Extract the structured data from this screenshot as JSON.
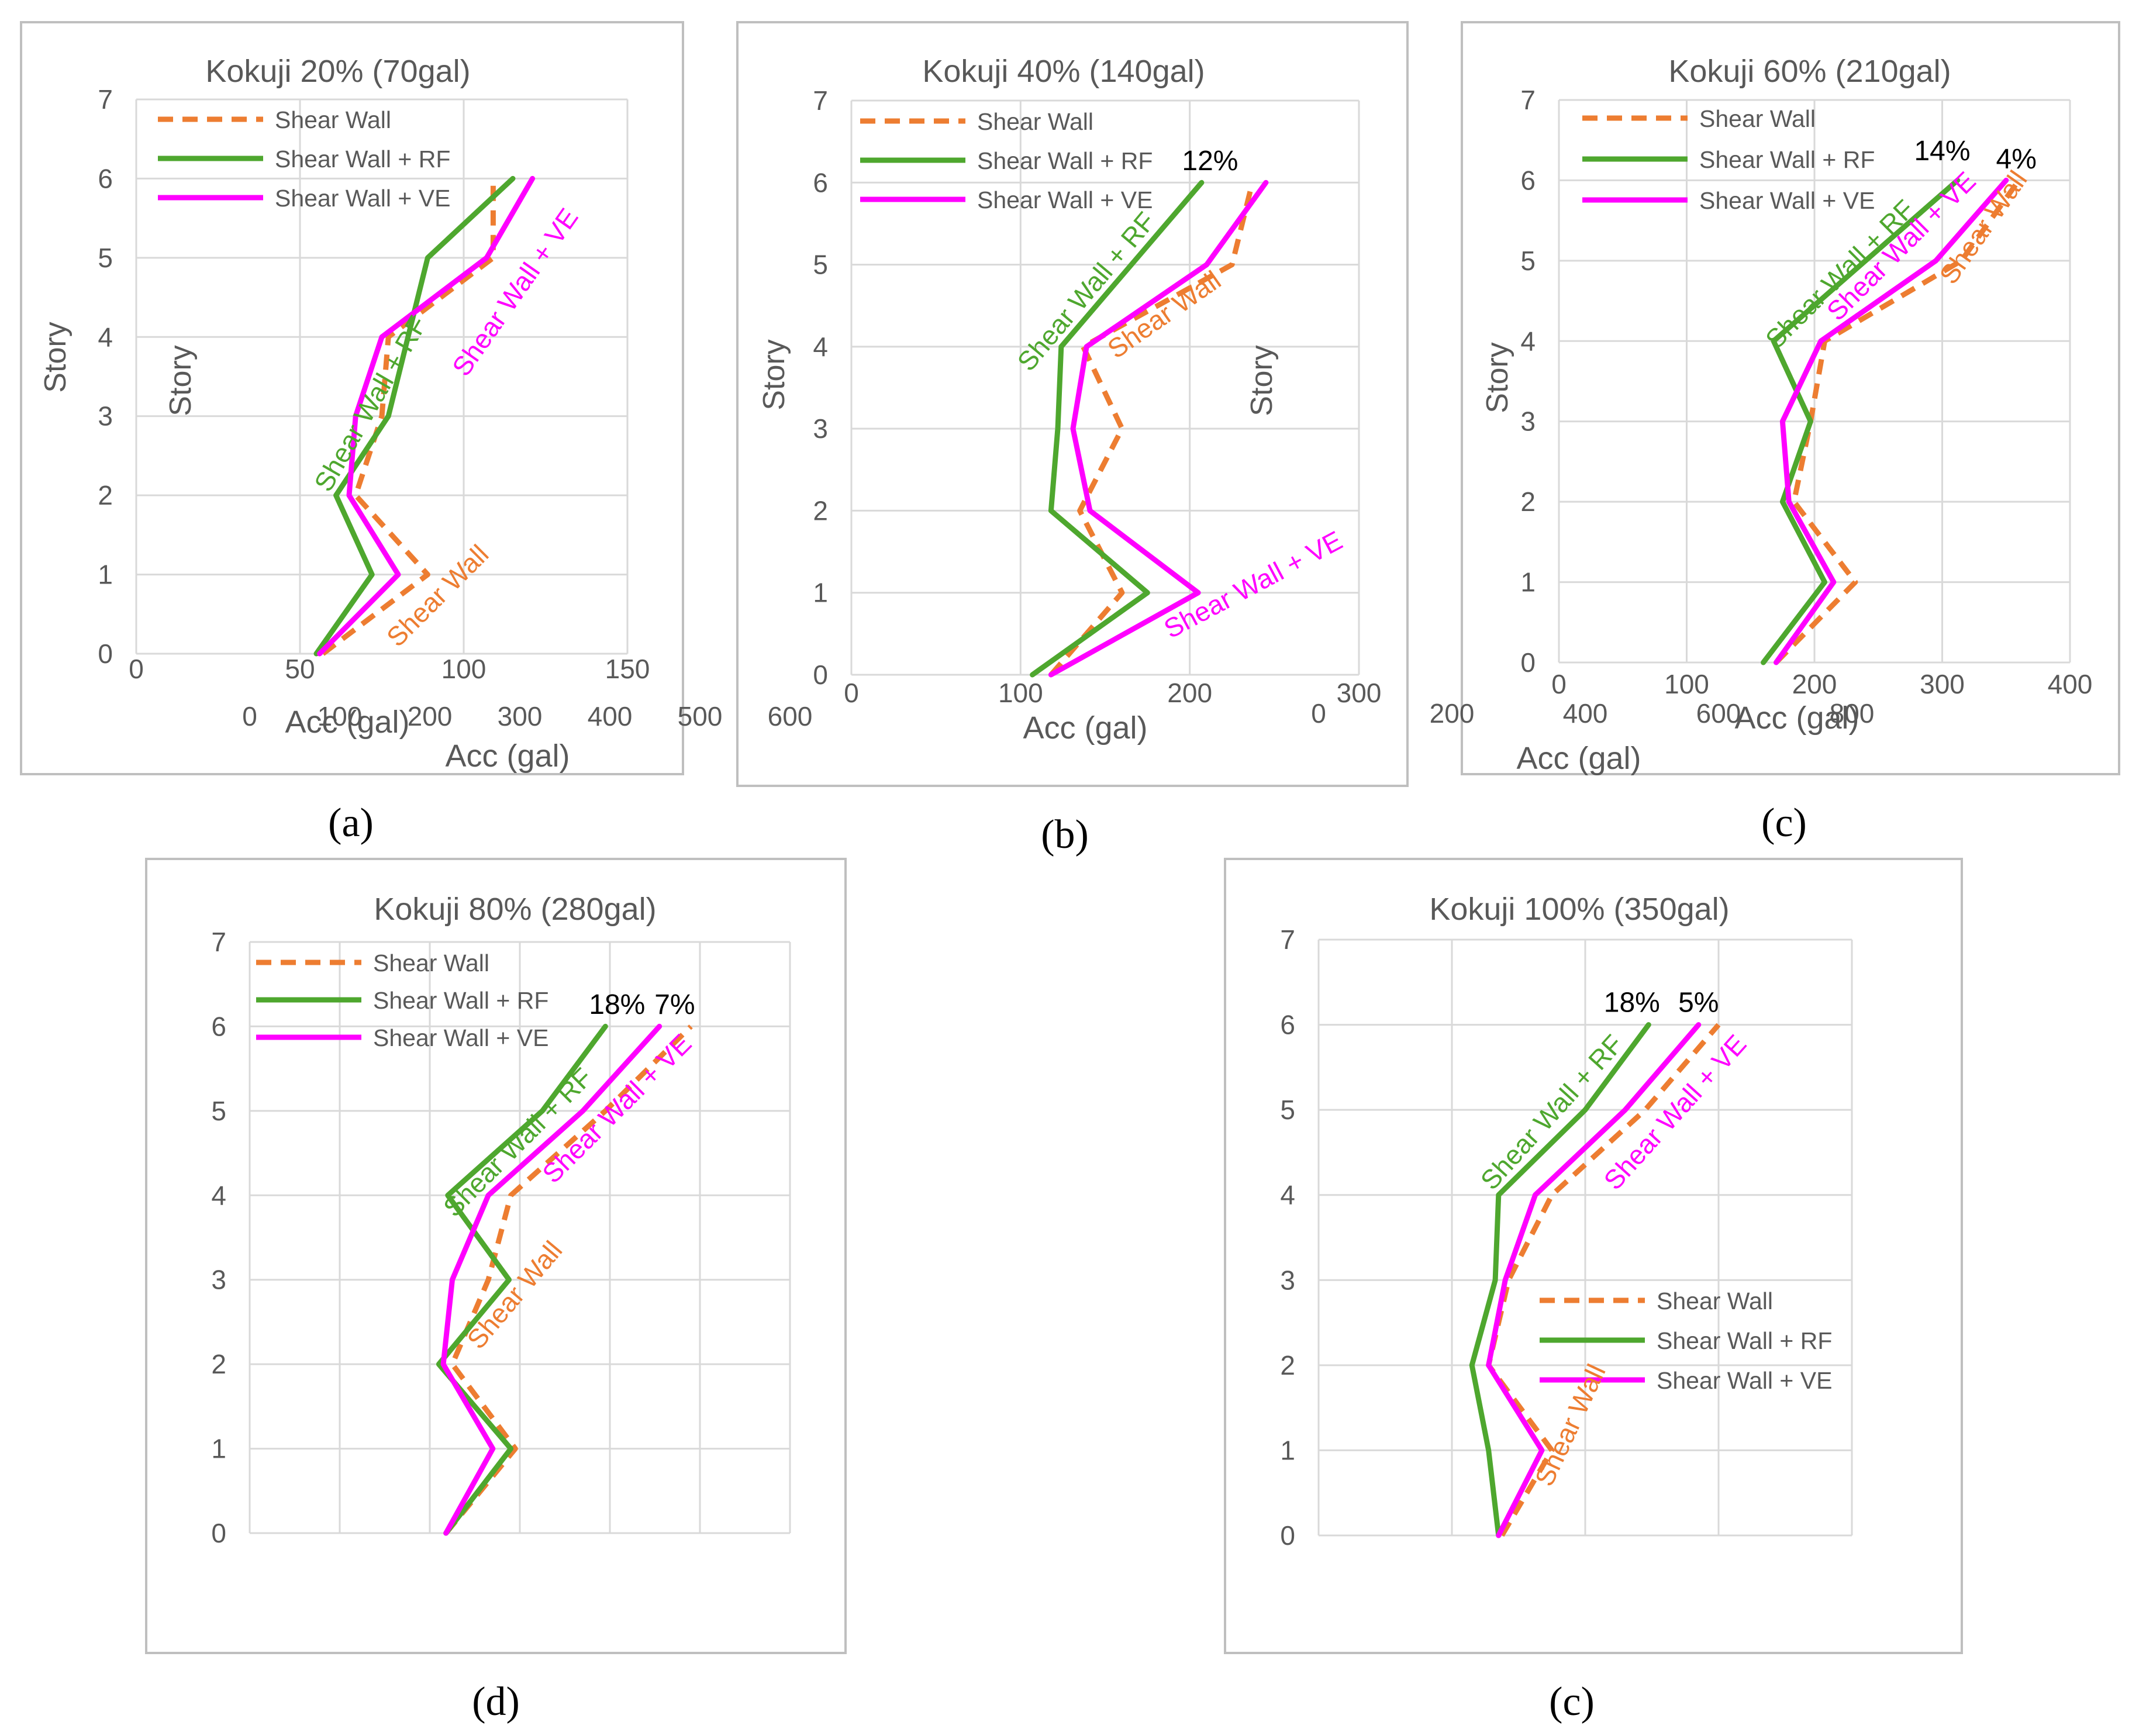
{
  "colors": {
    "shear_wall": "#ED7D31",
    "shear_wall_rf": "#4EA72E",
    "shear_wall_ve": "#FF00FF",
    "gridline": "#D9D9D9",
    "axis_text": "#595959",
    "title_text": "#595959",
    "frame": "#BFBFBF"
  },
  "chart_data": [
    {
      "id": "a",
      "type": "line",
      "caption": "(a)",
      "title": "Kokuji 20% (70gal)",
      "xlabel": "Acc (gal)",
      "ylabel": "Story",
      "xlim": [
        0,
        150
      ],
      "xticks": [
        "0",
        "50",
        "100",
        "150"
      ],
      "ylim": [
        0,
        7
      ],
      "yticks": [
        "0",
        "1",
        "2",
        "3",
        "4",
        "5",
        "6",
        "7"
      ],
      "grid": true,
      "legend": {
        "position": "top-left",
        "entries": [
          "Shear Wall",
          "Shear Wall + RF",
          "Shear Wall + VE"
        ]
      },
      "series": [
        {
          "name": "Shear Wall",
          "style": "dashed",
          "points": [
            [
              57,
              0
            ],
            [
              89,
              1
            ],
            [
              67,
              2
            ],
            [
              75,
              3
            ],
            [
              77,
              4
            ],
            [
              109,
              5
            ],
            [
              109,
              6
            ]
          ]
        },
        {
          "name": "Shear Wall + RF",
          "style": "solid",
          "points": [
            [
              55,
              0
            ],
            [
              72,
              1
            ],
            [
              61,
              2
            ],
            [
              77,
              3
            ],
            [
              89,
              5
            ],
            [
              115,
              6
            ]
          ]
        },
        {
          "name": "Shear Wall + VE",
          "style": "solid",
          "points": [
            [
              56,
              0
            ],
            [
              80,
              1
            ],
            [
              65,
              2
            ],
            [
              67,
              3
            ],
            [
              75,
              4
            ],
            [
              107,
              5
            ],
            [
              121,
              6
            ]
          ]
        }
      ],
      "annotations": [
        {
          "text": "Shear Wall + RF",
          "series": "Shear Wall + RF",
          "x": 74,
          "y": 3.1,
          "angle": -60
        },
        {
          "text": "Shear Wall + VE",
          "series": "Shear Wall + VE",
          "x": 118,
          "y": 4.5,
          "angle": -55
        },
        {
          "text": "Shear Wall",
          "series": "Shear Wall",
          "x": 94,
          "y": 0.65,
          "angle": -45
        }
      ]
    },
    {
      "id": "b",
      "type": "line",
      "caption": "(b)",
      "title": "Kokuji 40% (140gal)",
      "xlabel": "Acc (gal)",
      "ylabel": "Story",
      "xlim": [
        0,
        300
      ],
      "xticks": [
        "0",
        "100",
        "200",
        "300"
      ],
      "ylim": [
        0,
        7
      ],
      "yticks": [
        "0",
        "1",
        "2",
        "3",
        "4",
        "5",
        "6",
        "7"
      ],
      "grid": true,
      "legend": {
        "position": "top-left",
        "entries": [
          "Shear Wall",
          "Shear Wall + RF",
          "Shear Wall + VE"
        ]
      },
      "series": [
        {
          "name": "Shear Wall",
          "style": "dashed",
          "points": [
            [
              118,
              0
            ],
            [
              160,
              1
            ],
            [
              135,
              2
            ],
            [
              160,
              3
            ],
            [
              137,
              4
            ],
            [
              225,
              5
            ],
            [
              237,
              6
            ]
          ]
        },
        {
          "name": "Shear Wall + RF",
          "style": "solid",
          "points": [
            [
              107,
              0
            ],
            [
              175,
              1
            ],
            [
              118,
              2
            ],
            [
              122,
              3
            ],
            [
              124,
              4
            ],
            [
              207,
              6
            ]
          ]
        },
        {
          "name": "Shear Wall + VE",
          "style": "solid",
          "points": [
            [
              118,
              0
            ],
            [
              205,
              1
            ],
            [
              141,
              2
            ],
            [
              131,
              3
            ],
            [
              139,
              4
            ],
            [
              210,
              5
            ],
            [
              245,
              6
            ]
          ]
        }
      ],
      "annotations": [
        {
          "text": "12%",
          "x": 212,
          "y": 6.15,
          "angle": 0,
          "color": "#000000"
        },
        {
          "text": "Shear Wall + RF",
          "series": "Shear Wall + RF",
          "x": 143,
          "y": 4.6,
          "angle": -50
        },
        {
          "text": "Shear Wall",
          "series": "Shear Wall",
          "x": 188,
          "y": 4.3,
          "angle": -35
        },
        {
          "text": "Shear Wall + VE",
          "series": "Shear Wall + VE",
          "x": 240,
          "y": 1.0,
          "angle": -28
        }
      ]
    },
    {
      "id": "c",
      "type": "line",
      "caption": "(c)",
      "title": "Kokuji 60% (210gal)",
      "xlabel": "Acc (gal)",
      "ylabel": "Story",
      "xlim": [
        0,
        400
      ],
      "xticks": [
        "0",
        "100",
        "200",
        "300",
        "400"
      ],
      "ylim": [
        0,
        7
      ],
      "yticks": [
        "0",
        "1",
        "2",
        "3",
        "4",
        "5",
        "6",
        "7"
      ],
      "grid": true,
      "legend": {
        "position": "top-left",
        "entries": [
          "Shear Wall",
          "Shear Wall + RF",
          "Shear Wall + VE"
        ]
      },
      "series": [
        {
          "name": "Shear Wall",
          "style": "dashed",
          "points": [
            [
              170,
              0
            ],
            [
              232,
              1
            ],
            [
              184,
              2
            ],
            [
              197,
              3
            ],
            [
              208,
              4
            ],
            [
              315,
              5
            ],
            [
              360,
              6
            ]
          ]
        },
        {
          "name": "Shear Wall + RF",
          "style": "solid",
          "points": [
            [
              160,
              0
            ],
            [
              208,
              1
            ],
            [
              175,
              2
            ],
            [
              197,
              3
            ],
            [
              168,
              4
            ],
            [
              312,
              6
            ]
          ]
        },
        {
          "name": "Shear Wall + VE",
          "style": "solid",
          "points": [
            [
              170,
              0
            ],
            [
              215,
              1
            ],
            [
              180,
              2
            ],
            [
              175,
              3
            ],
            [
              205,
              4
            ],
            [
              295,
              5
            ],
            [
              350,
              6
            ]
          ]
        }
      ],
      "annotations": [
        {
          "text": "14%",
          "x": 300,
          "y": 6.25,
          "angle": 0,
          "color": "#000000"
        },
        {
          "text": "4%",
          "x": 358,
          "y": 6.15,
          "angle": 0,
          "color": "#000000"
        },
        {
          "text": "Shear Wall + RF",
          "series": "Shear Wall + RF",
          "x": 225,
          "y": 4.75,
          "angle": -45
        },
        {
          "text": "Shear Wall + VE",
          "series": "Shear Wall + VE",
          "x": 273,
          "y": 5.1,
          "angle": -45
        },
        {
          "text": "Shear Wall",
          "series": "Shear Wall",
          "x": 338,
          "y": 5.35,
          "angle": -55
        }
      ]
    },
    {
      "id": "d",
      "type": "line",
      "caption": "(d)",
      "title": "Kokuji 80% (280gal)",
      "xlabel": "Acc (gal)",
      "ylabel": "Story",
      "xlim": [
        0,
        600
      ],
      "xticks": [
        "0",
        "100",
        "200",
        "300",
        "400",
        "500",
        "600"
      ],
      "ylim": [
        0,
        7
      ],
      "yticks": [
        "0",
        "1",
        "2",
        "3",
        "4",
        "5",
        "6",
        "7"
      ],
      "grid": true,
      "legend": {
        "position": "top-left",
        "entries": [
          "Shear Wall",
          "Shear Wall + RF",
          "Shear Wall + VE"
        ]
      },
      "series": [
        {
          "name": "Shear Wall",
          "style": "dashed",
          "points": [
            [
              218,
              0
            ],
            [
              295,
              1
            ],
            [
              225,
              2
            ],
            [
              265,
              3
            ],
            [
              290,
              4
            ],
            [
              395,
              5
            ],
            [
              490,
              6
            ]
          ]
        },
        {
          "name": "Shear Wall + RF",
          "style": "solid",
          "points": [
            [
              218,
              0
            ],
            [
              290,
              1
            ],
            [
              210,
              2
            ],
            [
              288,
              3
            ],
            [
              220,
              4
            ],
            [
              325,
              5
            ],
            [
              395,
              6
            ]
          ]
        },
        {
          "name": "Shear Wall + VE",
          "style": "solid",
          "points": [
            [
              218,
              0
            ],
            [
              270,
              1
            ],
            [
              215,
              2
            ],
            [
              225,
              3
            ],
            [
              265,
              4
            ],
            [
              370,
              5
            ],
            [
              455,
              6
            ]
          ]
        }
      ],
      "annotations": [
        {
          "text": "18%",
          "x": 408,
          "y": 6.15,
          "angle": 0,
          "color": "#000000"
        },
        {
          "text": "7%",
          "x": 472,
          "y": 6.15,
          "angle": 0,
          "color": "#000000"
        },
        {
          "text": "Shear Wall + RF",
          "series": "Shear Wall + RF",
          "x": 305,
          "y": 4.55,
          "angle": -45
        },
        {
          "text": "Shear Wall + VE",
          "series": "Shear Wall + VE",
          "x": 415,
          "y": 4.95,
          "angle": -45
        },
        {
          "text": "Shear Wall",
          "series": "Shear Wall",
          "x": 302,
          "y": 2.75,
          "angle": -50
        }
      ]
    },
    {
      "id": "e",
      "type": "line",
      "caption": "(c)",
      "title": "Kokuji 100% (350gal)",
      "xlabel": "Acc (gal)",
      "ylabel": "Story",
      "xlim": [
        0,
        800
      ],
      "xticks": [
        "0",
        "200",
        "400",
        "600",
        "800"
      ],
      "ylim": [
        0,
        7
      ],
      "yticks": [
        "0",
        "1",
        "2",
        "3",
        "4",
        "5",
        "6",
        "7"
      ],
      "grid": true,
      "legend": {
        "position": "center-right",
        "entries": [
          "Shear Wall",
          "Shear Wall + RF",
          "Shear Wall + VE"
        ]
      },
      "series": [
        {
          "name": "Shear Wall",
          "style": "dashed",
          "points": [
            [
              275,
              0
            ],
            [
              350,
              1
            ],
            [
              255,
              2
            ],
            [
              285,
              3
            ],
            [
              350,
              4
            ],
            [
              490,
              5
            ],
            [
              600,
              6
            ]
          ]
        },
        {
          "name": "Shear Wall + RF",
          "style": "solid",
          "points": [
            [
              270,
              0
            ],
            [
              255,
              1
            ],
            [
              230,
              2
            ],
            [
              265,
              3
            ],
            [
              270,
              4
            ],
            [
              400,
              5
            ],
            [
              495,
              6
            ]
          ]
        },
        {
          "name": "Shear Wall + VE",
          "style": "solid",
          "points": [
            [
              270,
              0
            ],
            [
              335,
              1
            ],
            [
              255,
              2
            ],
            [
              280,
              3
            ],
            [
              325,
              4
            ],
            [
              460,
              5
            ],
            [
              570,
              6
            ]
          ]
        }
      ],
      "annotations": [
        {
          "text": "18%",
          "x": 470,
          "y": 6.15,
          "angle": 0,
          "color": "#000000"
        },
        {
          "text": "5%",
          "x": 570,
          "y": 6.15,
          "angle": 0,
          "color": "#000000"
        },
        {
          "text": "Shear Wall + RF",
          "series": "Shear Wall + RF",
          "x": 360,
          "y": 4.9,
          "angle": -48
        },
        {
          "text": "Shear Wall + VE",
          "series": "Shear Wall + VE",
          "x": 545,
          "y": 4.9,
          "angle": -48
        },
        {
          "text": "Shear Wall",
          "series": "Shear Wall",
          "x": 390,
          "y": 1.25,
          "angle": -65
        }
      ]
    }
  ]
}
